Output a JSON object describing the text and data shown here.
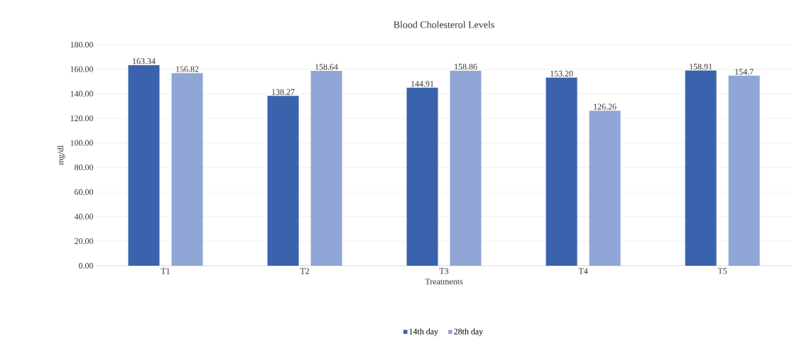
{
  "chart_data": {
    "type": "bar",
    "title": "Blood Cholesterol Levels",
    "xlabel": "Treatments",
    "ylabel": "mg/dl",
    "categories": [
      "T1",
      "T2",
      "T3",
      "T4",
      "T5"
    ],
    "series": [
      {
        "name": "14th day",
        "color": "#3a62ad",
        "values": [
          163.34,
          138.27,
          144.91,
          153.2,
          158.91
        ],
        "value_labels": [
          "163.34",
          "138.27",
          "144.91",
          "153.20",
          "158.91"
        ]
      },
      {
        "name": "28th day",
        "color": "#8fa6d6",
        "values": [
          156.82,
          158.64,
          158.86,
          126.26,
          154.7
        ],
        "value_labels": [
          "156.82",
          "158.64",
          "158.86",
          "126.26",
          "154.7"
        ]
      }
    ],
    "ylim": [
      0,
      180
    ],
    "yticks": [
      {
        "value": 0,
        "label": "0.00"
      },
      {
        "value": 20,
        "label": "20.00"
      },
      {
        "value": 40,
        "label": "40.00"
      },
      {
        "value": 60,
        "label": "60.00"
      },
      {
        "value": 80,
        "label": "80.00"
      },
      {
        "value": 100,
        "label": "100.00"
      },
      {
        "value": 120,
        "label": "120.00"
      },
      {
        "value": 140,
        "label": "140.00"
      },
      {
        "value": 160,
        "label": "160.00"
      },
      {
        "value": 180,
        "label": "180.00"
      }
    ],
    "grid": "y",
    "legend": "bottom"
  }
}
